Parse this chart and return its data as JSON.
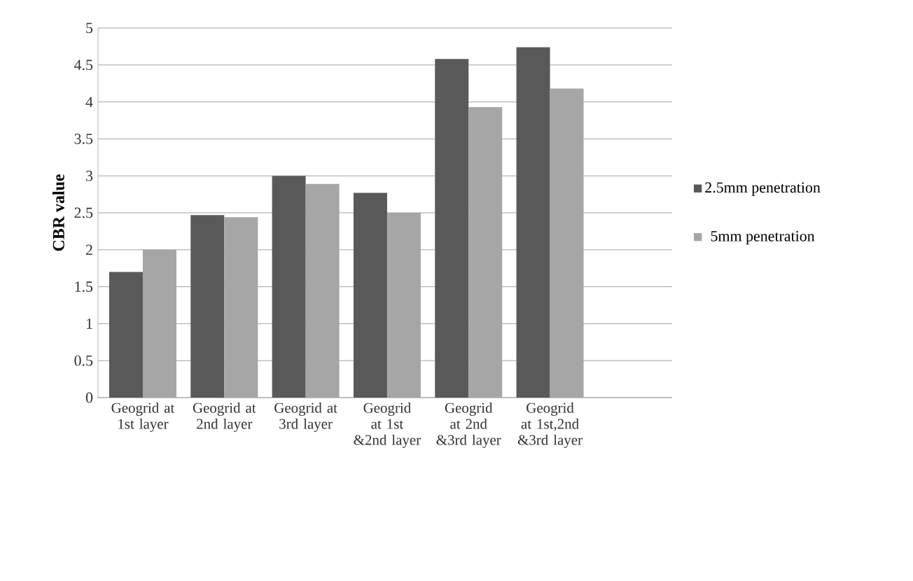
{
  "chart_data": {
    "type": "bar",
    "ylabel": "CBR value",
    "categories": [
      "Geogrid at 1st layer",
      "Geogrid at 2nd layer",
      "Geogrid at 3rd layer",
      "Geogrid at 1st &2nd layer",
      "Geogrid at 2nd &3rd layer",
      "Geogrid at 1st,2nd &3rd layer"
    ],
    "series": [
      {
        "name": "2.5mm penetration",
        "color": "#595959",
        "values": [
          1.7,
          2.47,
          3.0,
          2.77,
          4.58,
          4.74
        ]
      },
      {
        "name": "5mm penetration",
        "color": "#a6a6a6",
        "values": [
          2.0,
          2.44,
          2.89,
          2.5,
          3.93,
          4.18
        ]
      }
    ],
    "ylim": [
      0,
      5
    ],
    "yticks": [
      0,
      0.5,
      1,
      1.5,
      2,
      2.5,
      3,
      3.5,
      4,
      4.5,
      5
    ],
    "grid": "y",
    "legend": "right"
  }
}
